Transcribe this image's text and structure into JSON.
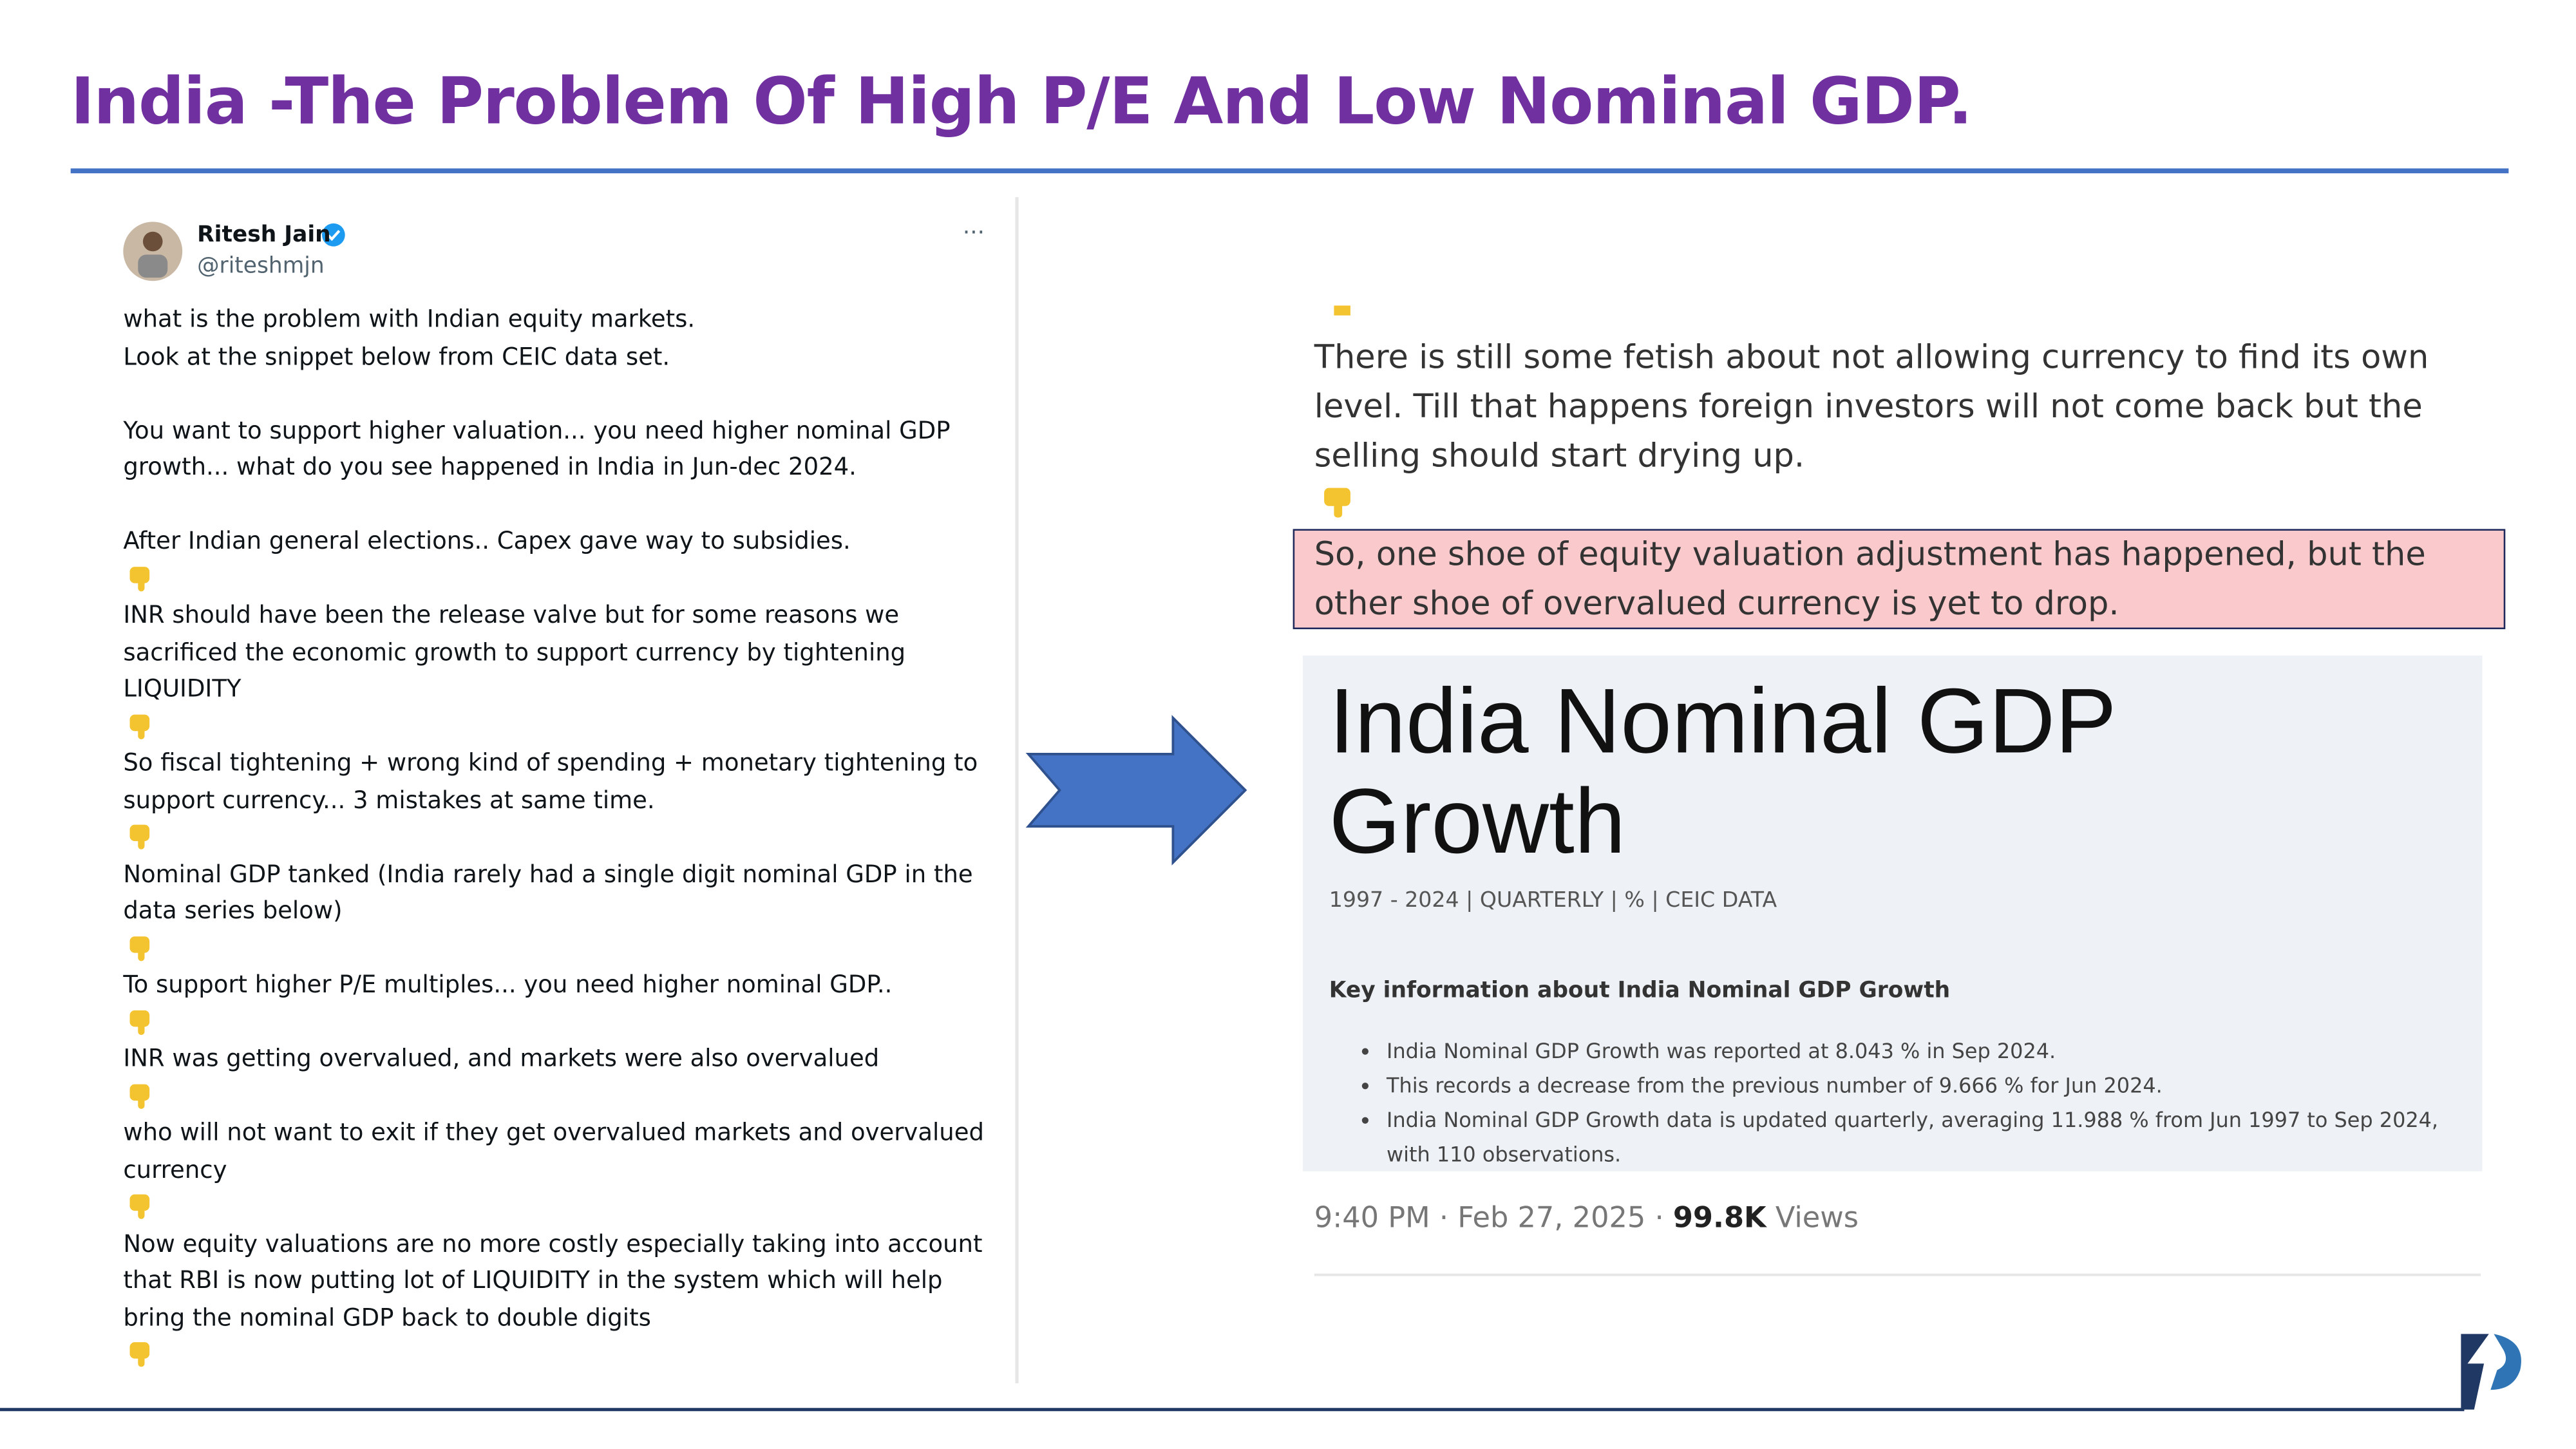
{
  "title": "India -The Problem Of High P/E And Low Nominal GDP.",
  "tweet": {
    "name": "Ritesh Jain",
    "handle": "@riteshmjn",
    "more": "···",
    "paragraphs": [
      {
        "lines": [
          "what is the problem with Indian equity markets.",
          "Look at the snippet below from CEIC data set."
        ],
        "thumb": false
      },
      {
        "lines": [
          "You want to support higher valuation... you need higher nominal GDP",
          "growth... what do you see happened in India in Jun-dec 2024."
        ],
        "thumb": false
      },
      {
        "lines": [
          "After Indian general elections.. Capex gave way to subsidies."
        ],
        "thumb": true
      },
      {
        "lines": [
          "INR should have been the release valve but for some reasons we",
          "sacrificed the economic growth to support currency by tightening",
          "LIQUIDITY"
        ],
        "thumb": true
      },
      {
        "lines": [
          "So fiscal tightening + wrong kind of spending + monetary tightening to",
          "support currency... 3 mistakes at same time."
        ],
        "thumb": true
      },
      {
        "lines": [
          "Nominal GDP tanked (India rarely had a single digit nominal GDP in the",
          "data series below)"
        ],
        "thumb": true
      },
      {
        "lines": [
          "To support higher P/E multiples... you need higher nominal GDP.."
        ],
        "thumb": true
      },
      {
        "lines": [
          "INR was getting overvalued, and markets were also overvalued"
        ],
        "thumb": true
      },
      {
        "lines": [
          "who will not want to exit if they get overvalued markets and overvalued",
          "currency"
        ],
        "thumb": true
      },
      {
        "lines": [
          "Now equity valuations are no more costly especially taking into account",
          "that RBI is now putting lot of LIQUIDITY in the system which will help",
          "bring the nominal GDP back to double digits"
        ],
        "thumb": true
      }
    ]
  },
  "quote": {
    "lines": [
      "There is still some fetish about not allowing currency to find its own",
      "level. Till that happens foreign investors will not come back but the",
      "selling should start drying up."
    ],
    "highlight": [
      "So, one shoe of equity valuation adjustment has happened, but the",
      "other shoe of overvalued currency is yet to drop."
    ]
  },
  "card": {
    "title_lines": [
      "India Nominal GDP",
      "Growth"
    ],
    "subtitle": "1997 - 2024 | QUARTERLY | % | CEIC DATA",
    "key_heading": "Key information about India Nominal GDP Growth",
    "bullets": [
      "India Nominal GDP Growth was reported at 8.043 % in Sep 2024.",
      "This records a decrease from the previous number of 9.666 % for Jun 2024.",
      "India Nominal GDP Growth data is updated quarterly, averaging 11.988 % from Jun 1997 to Sep 2024, with 110 observations."
    ]
  },
  "footer": {
    "time": "9:40 PM · Feb 27, 2025 · ",
    "views_count": "99.8K",
    "views_label": " Views"
  }
}
